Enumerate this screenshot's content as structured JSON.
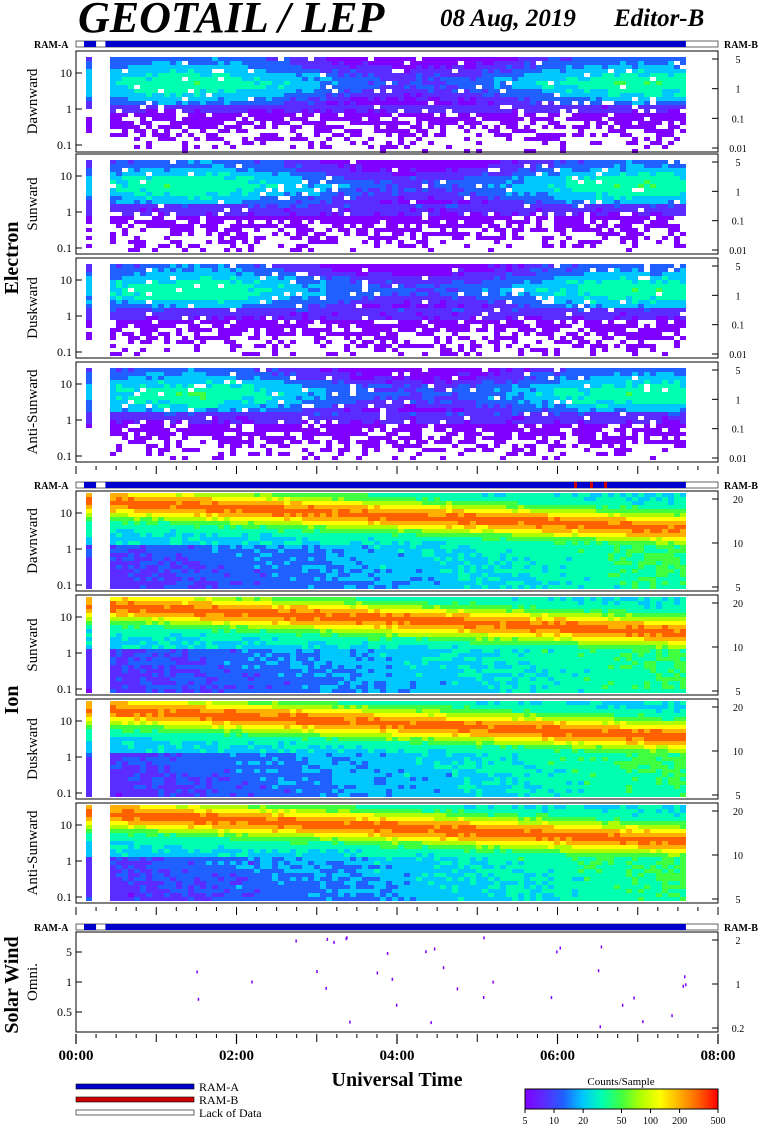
{
  "header": {
    "title": "GEOTAIL / LEP",
    "date": "08 Aug, 2019",
    "editor": "Editor-B"
  },
  "ram_labels": {
    "a": "RAM-A",
    "b": "RAM-B"
  },
  "groups": {
    "electron": "Electron",
    "ion": "Ion",
    "solar_wind": "Solar Wind"
  },
  "colors": {
    "ram_a": "#0000cc",
    "ram_b": "#cc0000",
    "lack": "#ffffff",
    "colormap": [
      "#7f00ff",
      "#5b2cff",
      "#2060ff",
      "#00c8ff",
      "#00ffb0",
      "#40ff40",
      "#b0ff00",
      "#ffff00",
      "#ffb000",
      "#ff6000",
      "#ff0000"
    ]
  },
  "chart_data": {
    "type": "heatmap",
    "xlabel": "Universal Time",
    "x_ticks": [
      "00:00",
      "02:00",
      "04:00",
      "06:00",
      "08:00"
    ],
    "xlim": [
      "00:00",
      "08:00"
    ],
    "data_gap": [
      "00:15",
      "00:22"
    ],
    "data_end": "07:36",
    "panels": [
      {
        "group": "electron",
        "label": "Dawnward",
        "y_ticks": [
          "10",
          "1",
          "0.1"
        ],
        "y2_ticks": [
          "5",
          "1",
          "0.1",
          "0.01"
        ]
      },
      {
        "group": "electron",
        "label": "Sunward",
        "y_ticks": [
          "10",
          "1",
          "0.1"
        ],
        "y2_ticks": [
          "5",
          "1",
          "0.1",
          "0.01"
        ]
      },
      {
        "group": "electron",
        "label": "Duskward",
        "y_ticks": [
          "10",
          "1",
          "0.1"
        ],
        "y2_ticks": [
          "5",
          "1",
          "0.1",
          "0.01"
        ]
      },
      {
        "group": "electron",
        "label": "Anti-Sunward",
        "y_ticks": [
          "10",
          "1",
          "0.1"
        ],
        "y2_ticks": [
          "5",
          "1",
          "0.1",
          "0.01"
        ]
      },
      {
        "group": "ion",
        "label": "Dawnward",
        "y_ticks": [
          "10",
          "1",
          "0.1"
        ],
        "y2_ticks": [
          "20",
          "10",
          "5"
        ]
      },
      {
        "group": "ion",
        "label": "Sunward",
        "y_ticks": [
          "10",
          "1",
          "0.1"
        ],
        "y2_ticks": [
          "20",
          "10",
          "5"
        ]
      },
      {
        "group": "ion",
        "label": "Duskward",
        "y_ticks": [
          "10",
          "1",
          "0.1"
        ],
        "y2_ticks": [
          "20",
          "10",
          "5"
        ]
      },
      {
        "group": "ion",
        "label": "Anti-Sunward",
        "y_ticks": [
          "10",
          "1",
          "0.1"
        ],
        "y2_ticks": [
          "20",
          "10",
          "5"
        ]
      },
      {
        "group": "solar_wind",
        "label": "Omni.",
        "y_ticks": [
          "5",
          "1",
          "0.5"
        ],
        "y2_ticks": [
          "2",
          "1",
          "0.2"
        ]
      }
    ],
    "legend": {
      "items": [
        "RAM-A",
        "RAM-B",
        "Lack of Data"
      ]
    },
    "colorbar": {
      "title": "Counts/Sample",
      "ticks": [
        "5",
        "10",
        "20",
        "50",
        "100",
        "200",
        "500"
      ]
    }
  }
}
